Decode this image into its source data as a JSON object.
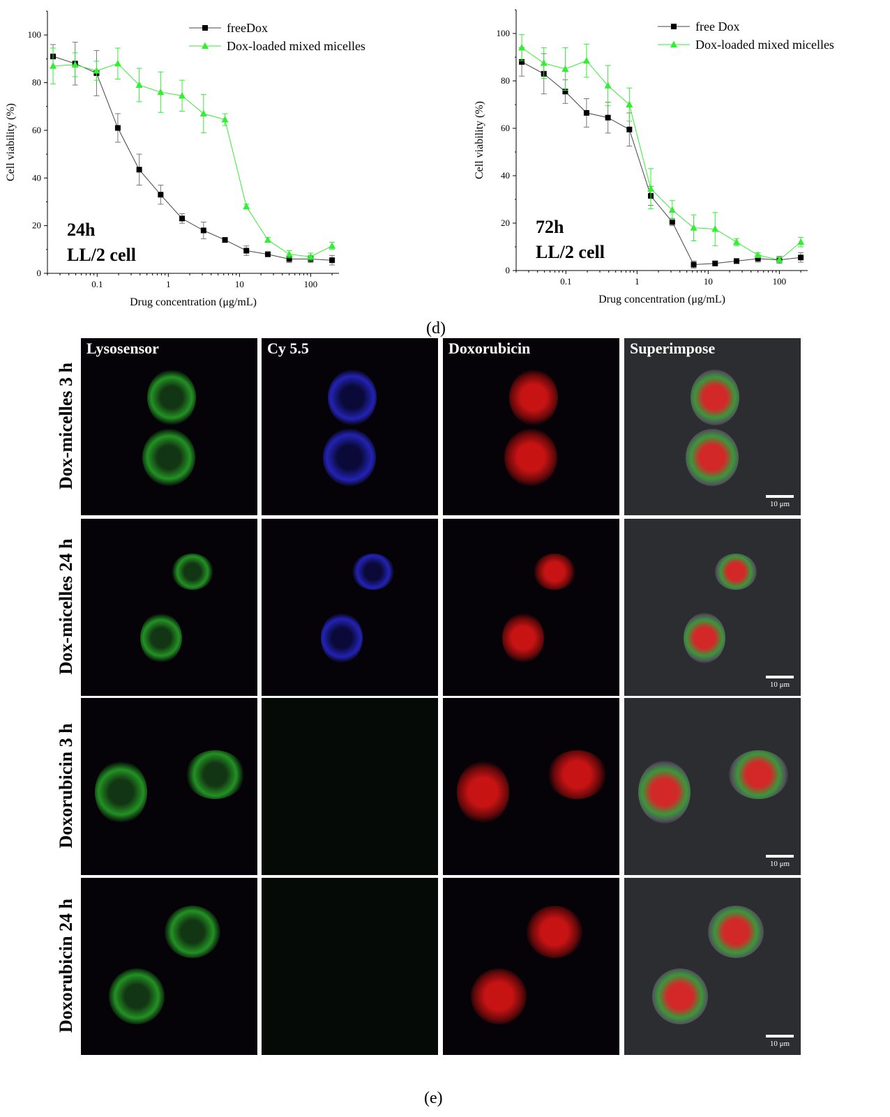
{
  "chart_data": [
    {
      "type": "line",
      "annotation": [
        "24h",
        "LL/2 cell"
      ],
      "xlabel": "Drug concentration (μg/mL)",
      "ylabel": "Cell viability (%)",
      "xscale": "log",
      "xlim": [
        0.02,
        250
      ],
      "ylim": [
        0,
        110
      ],
      "xticks": [
        "0.1",
        "1",
        "10",
        "100"
      ],
      "yticks": [
        "0",
        "20",
        "40",
        "60",
        "80",
        "100"
      ],
      "legend_position": "top-right",
      "series": [
        {
          "name": "freeDox",
          "color": "#000000",
          "marker": "square",
          "x": [
            0.024,
            0.049,
            0.098,
            0.195,
            0.39,
            0.78,
            1.56,
            3.125,
            6.25,
            12.5,
            25,
            50,
            100,
            200
          ],
          "y": [
            91,
            88,
            84,
            61,
            43.5,
            33,
            23,
            18,
            14,
            9.5,
            8,
            6,
            6,
            5.5
          ],
          "err": [
            5,
            9,
            9.5,
            6,
            6.5,
            4,
            2,
            3.5,
            1,
            2,
            1,
            1.5,
            1.5,
            2
          ]
        },
        {
          "name": "Dox-loaded mixed micelles",
          "color": "#33ee33",
          "marker": "triangle",
          "x": [
            0.024,
            0.049,
            0.098,
            0.195,
            0.39,
            0.78,
            1.56,
            3.125,
            6.25,
            12.5,
            25,
            50,
            100,
            200
          ],
          "y": [
            87,
            87.5,
            85,
            88,
            79,
            76,
            74.5,
            67,
            64.5,
            28,
            14,
            8,
            7,
            11.5
          ],
          "err": [
            7.5,
            5,
            4,
            6.5,
            7,
            8.5,
            6.5,
            8,
            2.5,
            1,
            1,
            1.5,
            1.5,
            1.5
          ]
        }
      ]
    },
    {
      "type": "line",
      "annotation": [
        "72h",
        "LL/2 cell"
      ],
      "xlabel": "Drug concentration (μg/mL)",
      "ylabel": "Cell viability (%)",
      "xscale": "log",
      "xlim": [
        0.02,
        250
      ],
      "ylim": [
        0,
        110
      ],
      "xticks": [
        "0.1",
        "1",
        "10",
        "100"
      ],
      "yticks": [
        "0",
        "20",
        "40",
        "60",
        "80",
        "100"
      ],
      "legend_position": "top-right",
      "series": [
        {
          "name": "free Dox",
          "color": "#000000",
          "marker": "square",
          "x": [
            0.024,
            0.049,
            0.098,
            0.195,
            0.39,
            0.78,
            1.56,
            3.125,
            6.25,
            12.5,
            25,
            50,
            100,
            200
          ],
          "y": [
            88,
            83,
            75.5,
            66.5,
            64.5,
            59.5,
            31.5,
            20.5,
            2.5,
            3,
            4,
            5,
            4.5,
            5.5
          ],
          "err": [
            6,
            8.5,
            5,
            6,
            6.5,
            7,
            4,
            1.5,
            1.5,
            1,
            1,
            1.5,
            1.5,
            2
          ]
        },
        {
          "name": "Dox-loaded mixed micelles",
          "color": "#33ee33",
          "marker": "triangle",
          "x": [
            0.024,
            0.049,
            0.098,
            0.195,
            0.39,
            0.78,
            1.56,
            3.125,
            6.25,
            12.5,
            25,
            50,
            100,
            200
          ],
          "y": [
            94,
            87.5,
            85,
            88.5,
            78,
            70,
            34.5,
            25.5,
            18,
            17.5,
            12,
            6.5,
            4.5,
            12
          ],
          "err": [
            5.5,
            6.5,
            9,
            7,
            8.5,
            7,
            8.5,
            4,
            5.5,
            7,
            1.5,
            1,
            1,
            2
          ]
        }
      ]
    }
  ],
  "captions": {
    "d": "(d)",
    "e": "(e)"
  },
  "microscopy": {
    "columns": [
      "Lysosensor",
      "Cy 5.5",
      "Doxorubicin",
      "Superimpose"
    ],
    "rows": [
      "Dox-micelles 3 h",
      "Dox-micelles 24 h",
      "Doxorubicin 3 h",
      "Doxorubicin 24 h"
    ],
    "scale_bar_label": "10 μm"
  }
}
